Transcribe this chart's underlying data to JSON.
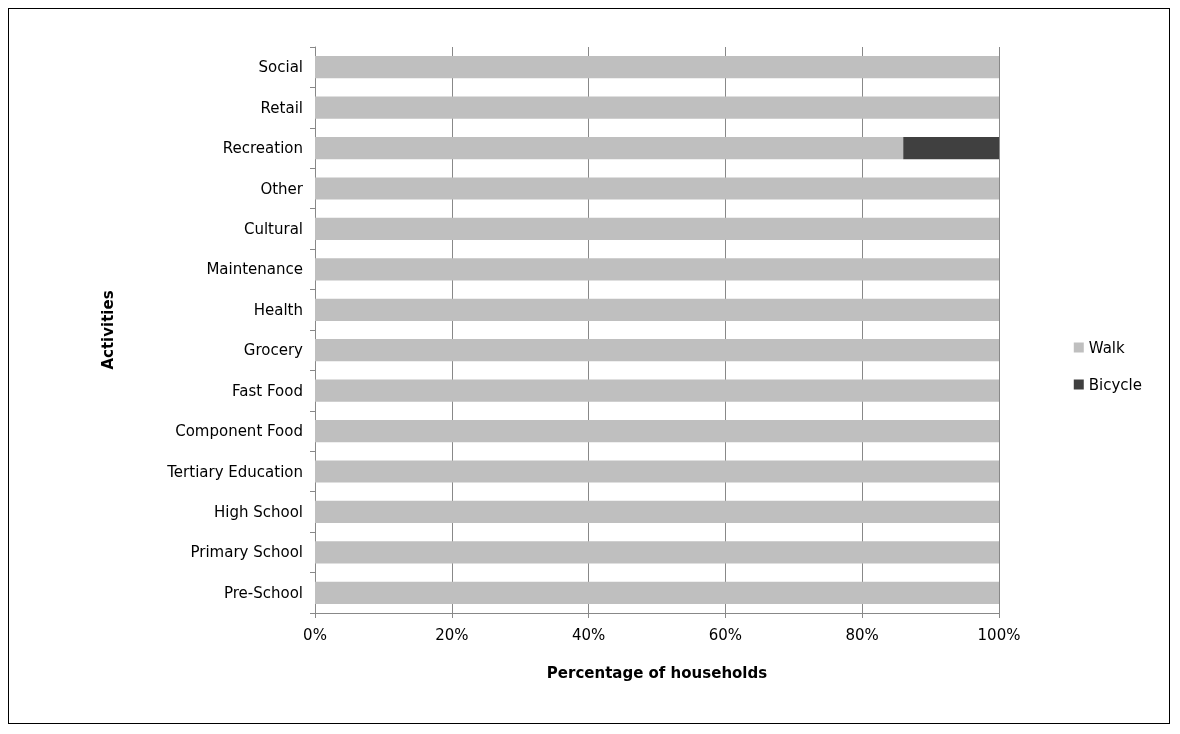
{
  "chart_data": {
    "type": "bar",
    "orientation": "horizontal",
    "stacked": true,
    "xlabel": "Percentage of households",
    "ylabel": "Activities",
    "categories": [
      "Social",
      "Retail",
      "Recreation",
      "Other",
      "Cultural",
      "Maintenance",
      "Health",
      "Grocery",
      "Fast Food",
      "Component Food",
      "Tertiary Education",
      "High School",
      "Primary School",
      "Pre-School"
    ],
    "series": [
      {
        "name": "Walk",
        "color": "#bfbfbf",
        "values": [
          100,
          100,
          86,
          100,
          100,
          100,
          100,
          100,
          100,
          100,
          100,
          100,
          100,
          100
        ]
      },
      {
        "name": "Bicycle",
        "color": "#404040",
        "values": [
          0,
          0,
          14,
          0,
          0,
          0,
          0,
          0,
          0,
          0,
          0,
          0,
          0,
          0
        ]
      }
    ],
    "xlim": [
      0,
      100
    ],
    "xticks": [
      {
        "value": 0,
        "label": "0%"
      },
      {
        "value": 20,
        "label": "20%"
      },
      {
        "value": 40,
        "label": "40%"
      },
      {
        "value": 60,
        "label": "60%"
      },
      {
        "value": 80,
        "label": "80%"
      },
      {
        "value": 100,
        "label": "100%"
      }
    ],
    "grid": "x",
    "legend": "right"
  }
}
